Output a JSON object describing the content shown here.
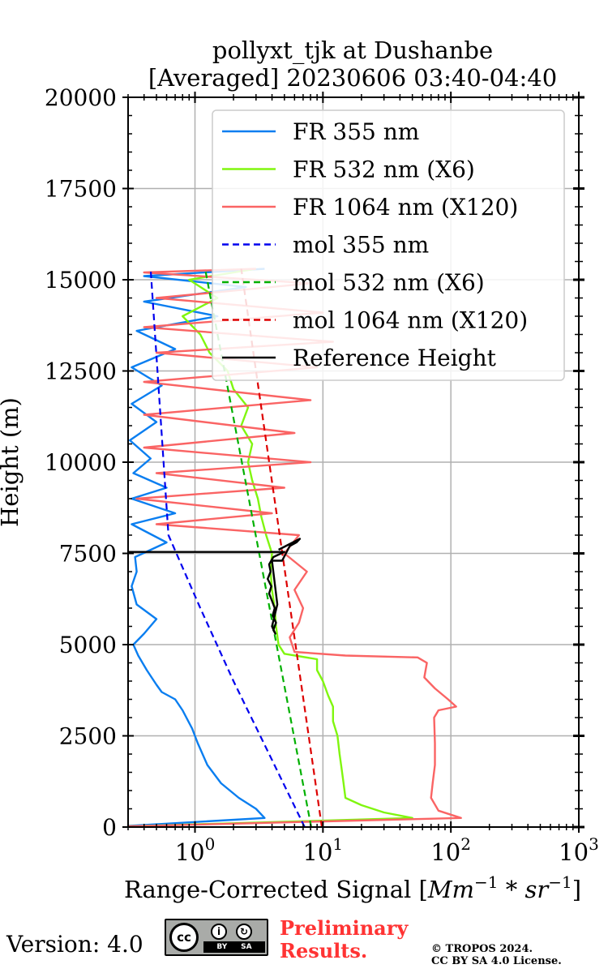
{
  "chart_data": {
    "type": "line",
    "title_line1": "pollyxt_tjk at Dushanbe",
    "title_line2": "[Averaged] 20230606 03:40-04:40",
    "xlabel": "Range-Corrected Signal [Mm⁻¹ * sr⁻¹]",
    "ylabel": "Height (m)",
    "xscale": "log",
    "xlim": [
      0.3,
      1000
    ],
    "ylim": [
      0,
      20000
    ],
    "grid": true,
    "legend_placement": "top-right",
    "y_ticks": [
      0,
      2500,
      5000,
      7500,
      10000,
      12500,
      15000,
      17500,
      20000
    ],
    "y_tick_labels": [
      "0",
      "2500",
      "5000",
      "7500",
      "10000",
      "12500",
      "15000",
      "17500",
      "20000"
    ],
    "x_ticks": [
      {
        "value": 1,
        "base": "10",
        "exp": "0"
      },
      {
        "value": 10,
        "base": "10",
        "exp": "1"
      },
      {
        "value": 100,
        "base": "10",
        "exp": "2"
      },
      {
        "value": 1000,
        "base": "10",
        "exp": "3"
      }
    ],
    "series": [
      {
        "name": "FR 355 nm",
        "color": "#0a7ef0",
        "style": "solid",
        "points": [
          [
            0.3,
            30
          ],
          [
            3.5,
            250
          ],
          [
            3.0,
            500
          ],
          [
            2.2,
            800
          ],
          [
            1.6,
            1200
          ],
          [
            1.25,
            1700
          ],
          [
            1.05,
            2300
          ],
          [
            0.95,
            2700
          ],
          [
            0.8,
            3200
          ],
          [
            0.7,
            3500
          ],
          [
            0.55,
            3700
          ],
          [
            0.5,
            3900
          ],
          [
            0.42,
            4300
          ],
          [
            0.36,
            4700
          ],
          [
            0.33,
            5000
          ],
          [
            0.4,
            5300
          ],
          [
            0.5,
            5700
          ],
          [
            0.35,
            6100
          ],
          [
            0.32,
            6600
          ],
          [
            0.35,
            7000
          ],
          [
            0.34,
            7400
          ],
          [
            0.6,
            7800
          ],
          [
            0.32,
            8300
          ],
          [
            0.7,
            8600
          ],
          [
            0.32,
            9000
          ],
          [
            0.6,
            9300
          ],
          [
            0.33,
            9700
          ],
          [
            0.45,
            10100
          ],
          [
            0.31,
            10600
          ],
          [
            0.5,
            11100
          ],
          [
            0.32,
            11600
          ],
          [
            0.55,
            12100
          ],
          [
            0.32,
            12600
          ],
          [
            0.7,
            13100
          ],
          [
            0.35,
            13600
          ],
          [
            1.5,
            14000
          ],
          [
            0.4,
            14400
          ],
          [
            2.5,
            14800
          ],
          [
            0.4,
            15100
          ],
          [
            3.5,
            15300
          ]
        ]
      },
      {
        "name": "FR 532 nm (X6)",
        "color": "#80f60f",
        "style": "solid",
        "points": [
          [
            0.3,
            20
          ],
          [
            50,
            250
          ],
          [
            30,
            400
          ],
          [
            20,
            600
          ],
          [
            15,
            800
          ],
          [
            14.5,
            1200
          ],
          [
            14,
            1600
          ],
          [
            13.5,
            2000
          ],
          [
            13,
            2500
          ],
          [
            12,
            2900
          ],
          [
            12,
            3300
          ],
          [
            11,
            3600
          ],
          [
            10,
            4000
          ],
          [
            9,
            4300
          ],
          [
            9,
            4600
          ],
          [
            5,
            4750
          ],
          [
            4.5,
            5000
          ],
          [
            4.3,
            5500
          ],
          [
            4.2,
            6000
          ],
          [
            4,
            6500
          ],
          [
            3.9,
            7000
          ],
          [
            4,
            7500
          ],
          [
            3.6,
            8000
          ],
          [
            3.3,
            8500
          ],
          [
            3.1,
            9000
          ],
          [
            2.8,
            9500
          ],
          [
            2.6,
            10000
          ],
          [
            2.8,
            10500
          ],
          [
            2.3,
            11000
          ],
          [
            2.6,
            11500
          ],
          [
            2.0,
            12000
          ],
          [
            1.8,
            12500
          ],
          [
            1.3,
            13000
          ],
          [
            1.1,
            13500
          ],
          [
            0.8,
            14000
          ],
          [
            1.5,
            14500
          ],
          [
            0.9,
            15000
          ],
          [
            3.0,
            15300
          ]
        ]
      },
      {
        "name": "FR 1064 nm (X120)",
        "color": "#fa6464",
        "style": "solid",
        "points": [
          [
            0.3,
            20
          ],
          [
            120,
            250
          ],
          [
            80,
            450
          ],
          [
            70,
            800
          ],
          [
            72,
            1200
          ],
          [
            75,
            1700
          ],
          [
            75,
            2300
          ],
          [
            74,
            3000
          ],
          [
            80,
            3200
          ],
          [
            110,
            3300
          ],
          [
            95,
            3500
          ],
          [
            75,
            3800
          ],
          [
            62,
            4100
          ],
          [
            65,
            4500
          ],
          [
            55,
            4650
          ],
          [
            15,
            4700
          ],
          [
            6,
            4800
          ],
          [
            5.5,
            5200
          ],
          [
            6.5,
            5600
          ],
          [
            7,
            6000
          ],
          [
            6,
            6500
          ],
          [
            7.5,
            7000
          ],
          [
            5,
            7500
          ],
          [
            6.5,
            8000
          ],
          [
            0.5,
            8300
          ],
          [
            4,
            8600
          ],
          [
            0.35,
            9000
          ],
          [
            5,
            9300
          ],
          [
            0.5,
            9700
          ],
          [
            8,
            10000
          ],
          [
            0.4,
            10400
          ],
          [
            6,
            10800
          ],
          [
            0.4,
            11300
          ],
          [
            8,
            11700
          ],
          [
            0.4,
            12200
          ],
          [
            9,
            12600
          ],
          [
            0.5,
            13000
          ],
          [
            12,
            13300
          ],
          [
            0.4,
            13700
          ],
          [
            10,
            14100
          ],
          [
            0.5,
            14500
          ],
          [
            8,
            14900
          ],
          [
            0.4,
            15200
          ],
          [
            3,
            15300
          ]
        ]
      },
      {
        "name": "mol 355 nm",
        "color": "#0000ee",
        "style": "dashed",
        "points": [
          [
            7.2,
            0
          ],
          [
            3.8,
            2000
          ],
          [
            2.0,
            4000
          ],
          [
            1.1,
            6000
          ],
          [
            0.62,
            8000
          ],
          [
            0.45,
            15300
          ]
        ]
      },
      {
        "name": "mol 532 nm (X6)",
        "color": "#00b000",
        "style": "dashed",
        "points": [
          [
            8.1,
            0
          ],
          [
            1.2,
            15300
          ]
        ]
      },
      {
        "name": "mol 1064 nm (X120)",
        "color": "#dd0000",
        "style": "dashed",
        "points": [
          [
            9.8,
            0
          ],
          [
            2.3,
            15300
          ]
        ]
      },
      {
        "name": "Reference Height",
        "color": "#000000",
        "style": "solid",
        "points": [
          [
            0.3,
            7540
          ],
          [
            5,
            7540
          ],
          [
            4.1,
            7400
          ],
          [
            3.8,
            7200
          ],
          [
            3.9,
            7000
          ],
          [
            3.7,
            6800
          ],
          [
            3.95,
            6600
          ],
          [
            3.8,
            6400
          ],
          [
            4.0,
            6200
          ],
          [
            4.2,
            6000
          ],
          [
            4.05,
            5800
          ],
          [
            4.3,
            5600
          ],
          [
            4.1,
            5400
          ],
          [
            4.25,
            5300
          ],
          [
            4.0,
            5500
          ],
          [
            4.4,
            6100
          ],
          [
            4.0,
            7300
          ],
          [
            4.8,
            7300
          ],
          [
            5.5,
            7700
          ],
          [
            6.2,
            7800
          ],
          [
            6.6,
            7900
          ],
          [
            4.5,
            7600
          ]
        ]
      }
    ]
  },
  "footer": {
    "version": "Version: 4.0",
    "license_badge": {
      "cc": "cc",
      "by": "BY",
      "sa": "SA"
    },
    "preliminary": [
      "Preliminary",
      "Results."
    ],
    "copyright": [
      "© TROPOS 2024.",
      "CC BY SA 4.0 License."
    ]
  }
}
